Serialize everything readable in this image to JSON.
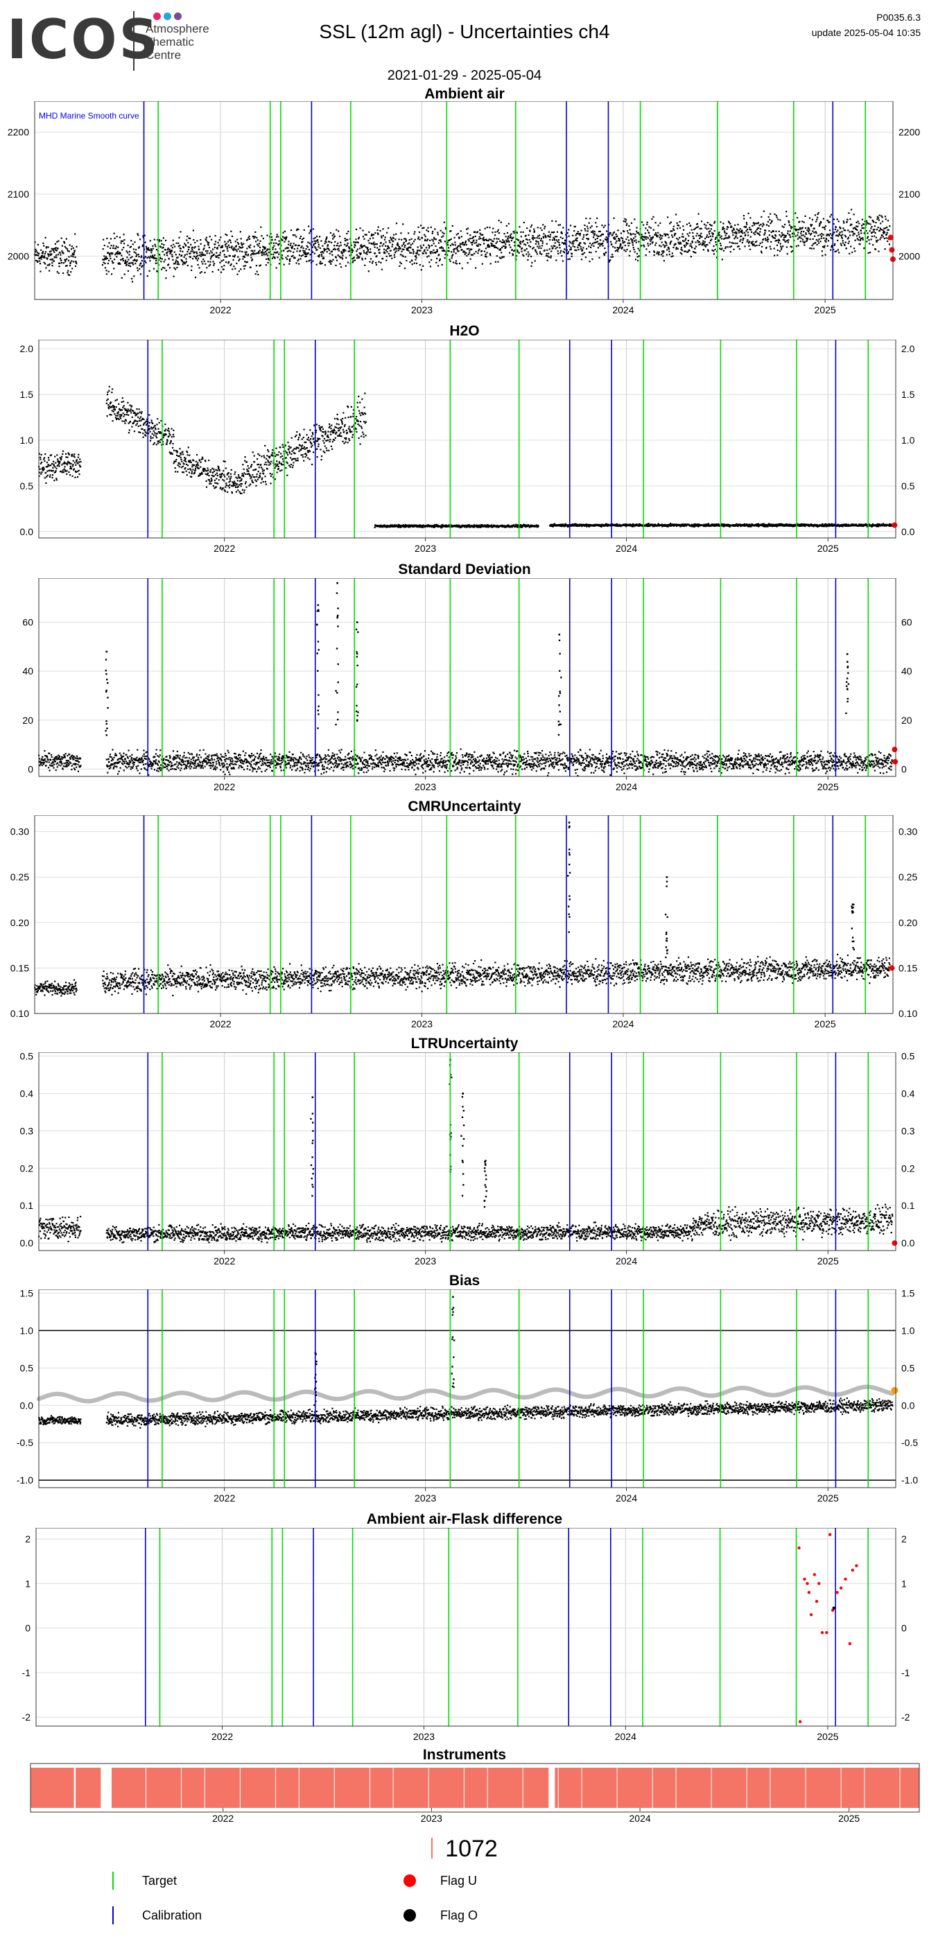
{
  "header": {
    "logo_text": "ICOS",
    "logo_subtitle_lines": [
      "Atmosphere",
      "Thematic",
      "Centre"
    ],
    "logo_dot_colors": [
      "#e5266e",
      "#22a6e0",
      "#7b4a9b"
    ],
    "title": "SSL  (12m agl) - Uncertainties ch4",
    "date_range": "2021-01-29 - 2025-05-04",
    "version": "P0035.6.3",
    "update": "update  2025-05-04 10:35"
  },
  "colors": {
    "target_line": "#00dd00",
    "calibration_line": "#0000cc",
    "flag_u": "#ff0000",
    "flag_o": "#000000",
    "data_points": "#000000",
    "bias_reference": "#bbbbbb",
    "instrument_fill": "#f47466",
    "gridline": "#dddddd",
    "annotation_text": "#0000ff"
  },
  "x_domain": [
    "2021-01-29",
    "2025-05-04"
  ],
  "year_ticks": [
    "2022",
    "2023",
    "2024",
    "2025"
  ],
  "marker_lines": {
    "calibration": [
      "2021-08-15",
      "2022-06-15",
      "2023-09-20",
      "2023-12-05",
      "2025-01-15"
    ],
    "target": [
      "2021-09-10",
      "2022-04-01",
      "2022-04-20",
      "2022-08-25",
      "2023-02-15",
      "2023-06-20",
      "2024-02-01",
      "2024-06-20",
      "2024-11-05",
      "2025-03-15"
    ]
  },
  "panels": [
    {
      "key": "ambient",
      "title": "Ambient air",
      "annotation": "MHD Marine Smooth curve",
      "ylim": [
        1930,
        2250
      ],
      "yticks": [
        "2000",
        "2100",
        "2200"
      ],
      "ytick_values": [
        2000,
        2100,
        2200
      ]
    },
    {
      "key": "h2o",
      "title": "H2O",
      "ylim": [
        -0.07,
        2.1
      ],
      "yticks": [
        "0.0",
        "0.5",
        "1.0",
        "1.5",
        "2.0"
      ],
      "ytick_values": [
        0,
        0.5,
        1,
        1.5,
        2
      ]
    },
    {
      "key": "stdev",
      "title": "Standard Deviation",
      "ylim": [
        -3,
        78
      ],
      "yticks": [
        "0",
        "20",
        "40",
        "60"
      ],
      "ytick_values": [
        0,
        20,
        40,
        60
      ]
    },
    {
      "key": "cmr",
      "title": "CMRUncertainty",
      "ylim": [
        0.1,
        0.318
      ],
      "yticks": [
        "0.10",
        "0.15",
        "0.20",
        "0.25",
        "0.30"
      ],
      "ytick_values": [
        0.1,
        0.15,
        0.2,
        0.25,
        0.3
      ]
    },
    {
      "key": "ltr",
      "title": "LTRUncertainty",
      "ylim": [
        -0.02,
        0.51
      ],
      "yticks": [
        "0.0",
        "0.1",
        "0.2",
        "0.3",
        "0.4",
        "0.5"
      ],
      "ytick_values": [
        0,
        0.1,
        0.2,
        0.3,
        0.4,
        0.5
      ]
    },
    {
      "key": "bias",
      "title": "Bias",
      "ylim": [
        -1.1,
        1.55
      ],
      "yticks": [
        "-1.0",
        "-0.5",
        "0.0",
        "0.5",
        "1.0",
        "1.5"
      ],
      "ytick_values": [
        -1,
        -0.5,
        0,
        0.5,
        1,
        1.5
      ],
      "reference_lines": [
        1,
        -1
      ]
    },
    {
      "key": "flaskdiff",
      "title": "Ambient air-Flask difference",
      "ylim": [
        -2.2,
        2.25
      ],
      "yticks": [
        "-2",
        "-1",
        "0",
        "1",
        "2"
      ],
      "ytick_values": [
        -2,
        -1,
        0,
        1,
        2
      ]
    },
    {
      "key": "instruments",
      "title": "Instruments",
      "count": "1072"
    }
  ],
  "chart_data": [
    {
      "type": "scatter",
      "title": "Ambient air",
      "x_type": "date",
      "ylim": [
        1930,
        2250
      ],
      "series": [
        {
          "name": "MHD Marine Smooth curve",
          "values": []
        }
      ],
      "segments": [
        {
          "x": [
            "2021-01-29",
            "2021-04-15"
          ],
          "y": [
            2000,
            2000
          ],
          "spread": 40
        },
        {
          "x": [
            "2021-06-01",
            "2025-04-28"
          ],
          "y": [
            2000,
            2040
          ],
          "spread": 45
        }
      ],
      "flag_u": [
        {
          "x": "2025-04-30",
          "y": 2030
        },
        {
          "x": "2025-05-02",
          "y": 2010
        },
        {
          "x": "2025-05-04",
          "y": 1995
        }
      ]
    },
    {
      "type": "scatter",
      "title": "H2O",
      "x_type": "date",
      "ylim": [
        -0.07,
        2.1
      ],
      "segments": [
        {
          "x": [
            "2021-01-29",
            "2021-04-15"
          ],
          "y": [
            0.7,
            0.75
          ],
          "spread": 0.22
        },
        {
          "x": [
            "2021-06-01",
            "2021-10-01"
          ],
          "y": [
            1.4,
            1.0
          ],
          "spread": 0.25
        },
        {
          "x": [
            "2021-10-01",
            "2022-02-01"
          ],
          "y": [
            0.8,
            0.5
          ],
          "spread": 0.22
        },
        {
          "x": [
            "2022-02-01",
            "2022-09-15"
          ],
          "y": [
            0.6,
            1.25
          ],
          "spread": 0.3
        },
        {
          "x": [
            "2022-10-01",
            "2023-07-25"
          ],
          "y": [
            0.06,
            0.06
          ],
          "spread": 0.02
        },
        {
          "x": [
            "2023-08-15",
            "2025-04-28"
          ],
          "y": [
            0.07,
            0.07
          ],
          "spread": 0.02
        }
      ],
      "flag_u": [
        {
          "x": "2025-05-02",
          "y": 0.07
        }
      ]
    },
    {
      "type": "scatter",
      "title": "Standard Deviation",
      "x_type": "date",
      "ylim": [
        -3,
        78
      ],
      "segments": [
        {
          "x": [
            "2021-01-29",
            "2021-04-15"
          ],
          "y": [
            3,
            3
          ],
          "spread": 5
        },
        {
          "x": [
            "2021-06-01",
            "2025-04-28"
          ],
          "y": [
            3,
            3
          ],
          "spread": 6
        }
      ],
      "spikes": [
        {
          "x": "2022-07-25",
          "y": 76
        },
        {
          "x": "2022-06-20",
          "y": 67
        },
        {
          "x": "2022-08-30",
          "y": 60
        },
        {
          "x": "2023-09-01",
          "y": 55
        },
        {
          "x": "2025-02-05",
          "y": 47
        },
        {
          "x": "2021-06-01",
          "y": 48
        }
      ],
      "flag_u": [
        {
          "x": "2025-05-02",
          "y": 8
        },
        {
          "x": "2025-05-03",
          "y": 3
        }
      ]
    },
    {
      "type": "scatter",
      "title": "CMRUncertainty",
      "x_type": "date",
      "ylim": [
        0.1,
        0.318
      ],
      "segments": [
        {
          "x": [
            "2021-01-29",
            "2021-04-15"
          ],
          "y": [
            0.128,
            0.128
          ],
          "spread": 0.01
        },
        {
          "x": [
            "2021-06-01",
            "2025-04-28"
          ],
          "y": [
            0.135,
            0.15
          ],
          "spread": 0.018
        }
      ],
      "spikes": [
        {
          "x": "2023-09-25",
          "y": 0.31
        },
        {
          "x": "2024-03-20",
          "y": 0.25
        },
        {
          "x": "2025-02-20",
          "y": 0.22
        }
      ],
      "flag_u": [
        {
          "x": "2025-05-02",
          "y": 0.15
        }
      ]
    },
    {
      "type": "scatter",
      "title": "LTRUncertainty",
      "x_type": "date",
      "ylim": [
        -0.02,
        0.51
      ],
      "segments": [
        {
          "x": [
            "2021-01-29",
            "2021-04-15"
          ],
          "y": [
            0.04,
            0.04
          ],
          "spread": 0.04
        },
        {
          "x": [
            "2021-06-01",
            "2024-05-01"
          ],
          "y": [
            0.025,
            0.03
          ],
          "spread": 0.03
        },
        {
          "x": [
            "2024-05-01",
            "2025-04-28"
          ],
          "y": [
            0.05,
            0.06
          ],
          "spread": 0.05
        }
      ],
      "spikes": [
        {
          "x": "2023-02-15",
          "y": 0.49
        },
        {
          "x": "2022-06-10",
          "y": 0.39
        },
        {
          "x": "2023-03-10",
          "y": 0.4
        },
        {
          "x": "2023-04-20",
          "y": 0.22
        }
      ],
      "flag_u": [
        {
          "x": "2025-05-02",
          "y": 0.0
        }
      ]
    },
    {
      "type": "scatter",
      "title": "Bias",
      "x_type": "date",
      "ylim": [
        -1.1,
        1.55
      ],
      "reference_lines": [
        1,
        -1
      ],
      "segments": [
        {
          "x": [
            "2021-01-29",
            "2021-04-15"
          ],
          "y": [
            -0.2,
            -0.2
          ],
          "spread": 0.08
        },
        {
          "x": [
            "2021-06-01",
            "2025-04-28"
          ],
          "y": [
            -0.2,
            0.0
          ],
          "spread": 0.12
        }
      ],
      "reference_series": {
        "x": [
          "2021-01-29",
          "2025-04-28"
        ],
        "y": [
          0.1,
          0.2
        ]
      },
      "spikes": [
        {
          "x": "2023-02-20",
          "y": 1.45
        },
        {
          "x": "2022-06-15",
          "y": 0.7
        }
      ],
      "flag_o": [
        {
          "x": "2025-05-02",
          "y": 0.2
        }
      ]
    },
    {
      "type": "scatter",
      "title": "Ambient air-Flask difference",
      "x_type": "date",
      "ylim": [
        -2.2,
        2.25
      ],
      "flag_u": [
        {
          "x": "2024-11-10",
          "y": 1.8
        },
        {
          "x": "2024-11-12",
          "y": -2.1
        },
        {
          "x": "2024-11-20",
          "y": 1.1
        },
        {
          "x": "2024-11-25",
          "y": 1.0
        },
        {
          "x": "2024-11-28",
          "y": 0.8
        },
        {
          "x": "2024-12-02",
          "y": 0.3
        },
        {
          "x": "2024-12-08",
          "y": 1.2
        },
        {
          "x": "2024-12-12",
          "y": 0.6
        },
        {
          "x": "2024-12-16",
          "y": 1.0
        },
        {
          "x": "2024-12-22",
          "y": -0.1
        },
        {
          "x": "2024-12-30",
          "y": -0.1
        },
        {
          "x": "2025-01-05",
          "y": 2.1
        },
        {
          "x": "2025-01-10",
          "y": 0.4
        },
        {
          "x": "2025-01-18",
          "y": 0.8
        },
        {
          "x": "2025-01-25",
          "y": 0.9
        },
        {
          "x": "2025-02-02",
          "y": 1.1
        },
        {
          "x": "2025-02-10",
          "y": -0.35
        },
        {
          "x": "2025-02-15",
          "y": 1.3
        },
        {
          "x": "2025-02-22",
          "y": 1.4
        }
      ],
      "flag_o": [
        {
          "x": "2025-01-12",
          "y": 0.45
        }
      ]
    },
    {
      "type": "timeline",
      "title": "Instruments",
      "instrument_id": "1072",
      "periods": [
        {
          "x": [
            "2021-01-29",
            "2021-04-15"
          ]
        },
        {
          "x": [
            "2021-04-18",
            "2021-06-01"
          ]
        },
        {
          "x": [
            "2021-06-20",
            "2023-07-25"
          ]
        },
        {
          "x": [
            "2023-08-05",
            "2025-05-04"
          ]
        }
      ]
    }
  ],
  "legend": {
    "target_label": "Target",
    "calibration_label": "Calibration",
    "flag_u_label": "Flag U",
    "flag_o_label": "Flag O"
  }
}
